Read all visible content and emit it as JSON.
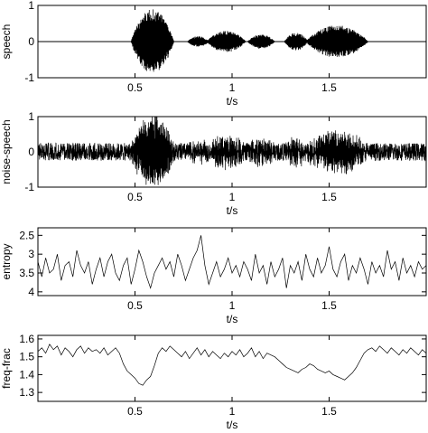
{
  "chart_data": [
    {
      "type": "line",
      "ylabel": "speech",
      "xlabel": "t/s",
      "xlim": [
        0,
        2
      ],
      "ylim": [
        -1,
        1
      ],
      "xticks": [
        0.5,
        1,
        1.5
      ],
      "xtick_labels": [
        "0.5",
        "1",
        "1.5"
      ],
      "yticks": [
        1,
        0,
        -1
      ],
      "ytick_labels": [
        "1",
        "0",
        "-1"
      ],
      "y_inverted": false,
      "signal": {
        "kind": "oscillation",
        "noise": 0.0,
        "segments": [
          {
            "start": 0.48,
            "end": 0.7,
            "amp": 0.9
          },
          {
            "start": 0.77,
            "end": 0.88,
            "amp": 0.15
          },
          {
            "start": 0.87,
            "end": 1.07,
            "amp": 0.3
          },
          {
            "start": 1.08,
            "end": 1.22,
            "amp": 0.2
          },
          {
            "start": 1.27,
            "end": 1.39,
            "amp": 0.25
          },
          {
            "start": 1.38,
            "end": 1.7,
            "amp": 0.45
          }
        ]
      }
    },
    {
      "type": "line",
      "ylabel": "noise-speech",
      "xlabel": "t/s",
      "xlim": [
        0,
        2
      ],
      "ylim": [
        -1,
        1
      ],
      "xticks": [
        0.5,
        1,
        1.5
      ],
      "xtick_labels": [
        "0.5",
        "1",
        "1.5"
      ],
      "yticks": [
        1,
        0,
        -1
      ],
      "ytick_labels": [
        "1",
        "0",
        "-1"
      ],
      "y_inverted": false,
      "signal": {
        "kind": "oscillation",
        "noise": 0.25,
        "segments": [
          {
            "start": 0.48,
            "end": 0.7,
            "amp": 0.9
          },
          {
            "start": 0.77,
            "end": 0.88,
            "amp": 0.15
          },
          {
            "start": 0.87,
            "end": 1.07,
            "amp": 0.3
          },
          {
            "start": 1.08,
            "end": 1.22,
            "amp": 0.2
          },
          {
            "start": 1.27,
            "end": 1.39,
            "amp": 0.25
          },
          {
            "start": 1.38,
            "end": 1.7,
            "amp": 0.45
          }
        ]
      }
    },
    {
      "type": "line",
      "ylabel": "entropy",
      "xlabel": "t/s",
      "xlim": [
        0,
        2
      ],
      "ylim": [
        2.3,
        4.1
      ],
      "xticks": [
        0.5,
        1,
        1.5
      ],
      "xtick_labels": [
        "0.5",
        "1",
        "1.5"
      ],
      "yticks": [
        2.5,
        3,
        3.5,
        4
      ],
      "ytick_labels": [
        "2.5",
        "3",
        "3.5",
        "4"
      ],
      "y_inverted": true,
      "x": [
        0.0,
        0.02,
        0.04,
        0.06,
        0.08,
        0.1,
        0.12,
        0.14,
        0.16,
        0.18,
        0.2,
        0.22,
        0.24,
        0.26,
        0.28,
        0.3,
        0.32,
        0.34,
        0.36,
        0.38,
        0.4,
        0.42,
        0.44,
        0.46,
        0.48,
        0.5,
        0.52,
        0.54,
        0.56,
        0.58,
        0.6,
        0.62,
        0.64,
        0.66,
        0.68,
        0.7,
        0.72,
        0.74,
        0.76,
        0.78,
        0.8,
        0.82,
        0.84,
        0.86,
        0.88,
        0.9,
        0.92,
        0.94,
        0.96,
        0.98,
        1.0,
        1.02,
        1.04,
        1.06,
        1.08,
        1.1,
        1.12,
        1.14,
        1.16,
        1.18,
        1.2,
        1.22,
        1.24,
        1.26,
        1.28,
        1.3,
        1.32,
        1.34,
        1.36,
        1.38,
        1.4,
        1.42,
        1.44,
        1.46,
        1.48,
        1.5,
        1.52,
        1.54,
        1.56,
        1.58,
        1.6,
        1.62,
        1.64,
        1.66,
        1.68,
        1.7,
        1.72,
        1.74,
        1.76,
        1.78,
        1.8,
        1.82,
        1.84,
        1.86,
        1.88,
        1.9,
        1.92,
        1.94,
        1.96,
        1.98,
        2.0
      ],
      "y": [
        3.2,
        3.6,
        3.1,
        3.5,
        3.4,
        3.0,
        3.7,
        3.3,
        3.2,
        3.6,
        2.9,
        3.3,
        3.5,
        3.2,
        3.8,
        3.4,
        3.1,
        3.6,
        3.2,
        3.0,
        3.5,
        3.7,
        3.3,
        3.1,
        3.8,
        3.4,
        2.9,
        3.2,
        3.6,
        3.9,
        3.5,
        3.3,
        3.1,
        3.4,
        3.2,
        3.6,
        3.0,
        3.3,
        3.7,
        3.4,
        3.1,
        2.9,
        2.5,
        3.3,
        3.8,
        3.5,
        3.2,
        3.6,
        3.4,
        3.1,
        3.5,
        3.3,
        3.6,
        3.2,
        3.4,
        3.7,
        3.0,
        3.5,
        3.3,
        3.8,
        3.2,
        3.6,
        3.4,
        3.1,
        3.9,
        3.3,
        3.5,
        3.2,
        3.7,
        3.0,
        3.4,
        3.6,
        3.1,
        3.5,
        3.3,
        2.8,
        3.4,
        3.6,
        3.2,
        3.0,
        3.7,
        3.3,
        3.5,
        3.1,
        3.4,
        3.8,
        3.2,
        3.5,
        3.3,
        3.6,
        2.9,
        3.4,
        3.2,
        3.7,
        3.1,
        3.5,
        3.3,
        3.6,
        3.2,
        3.4,
        3.3
      ]
    },
    {
      "type": "line",
      "ylabel": "freq-frac",
      "xlabel": "t/s",
      "xlim": [
        0,
        2
      ],
      "ylim": [
        1.25,
        1.62
      ],
      "xticks": [
        0.5,
        1,
        1.5
      ],
      "xtick_labels": [
        "0.5",
        "1",
        "1.5"
      ],
      "yticks": [
        1.6,
        1.5,
        1.4,
        1.3
      ],
      "ytick_labels": [
        "1.6",
        "1.5",
        "1.4",
        "1.3"
      ],
      "y_inverted": false,
      "x": [
        0.0,
        0.02,
        0.04,
        0.06,
        0.08,
        0.1,
        0.12,
        0.14,
        0.16,
        0.18,
        0.2,
        0.22,
        0.24,
        0.26,
        0.28,
        0.3,
        0.32,
        0.34,
        0.36,
        0.38,
        0.4,
        0.42,
        0.44,
        0.46,
        0.48,
        0.5,
        0.52,
        0.54,
        0.56,
        0.58,
        0.6,
        0.62,
        0.64,
        0.66,
        0.68,
        0.7,
        0.72,
        0.74,
        0.76,
        0.78,
        0.8,
        0.82,
        0.84,
        0.86,
        0.88,
        0.9,
        0.92,
        0.94,
        0.96,
        0.98,
        1.0,
        1.02,
        1.04,
        1.06,
        1.08,
        1.1,
        1.12,
        1.14,
        1.16,
        1.18,
        1.2,
        1.22,
        1.24,
        1.26,
        1.28,
        1.3,
        1.32,
        1.34,
        1.36,
        1.38,
        1.4,
        1.42,
        1.44,
        1.46,
        1.48,
        1.5,
        1.52,
        1.54,
        1.56,
        1.58,
        1.6,
        1.62,
        1.64,
        1.66,
        1.68,
        1.7,
        1.72,
        1.74,
        1.76,
        1.78,
        1.8,
        1.82,
        1.84,
        1.86,
        1.88,
        1.9,
        1.92,
        1.94,
        1.96,
        1.98,
        2.0
      ],
      "y": [
        1.53,
        1.55,
        1.52,
        1.57,
        1.54,
        1.56,
        1.51,
        1.55,
        1.53,
        1.5,
        1.54,
        1.56,
        1.52,
        1.55,
        1.53,
        1.54,
        1.52,
        1.55,
        1.51,
        1.53,
        1.55,
        1.52,
        1.46,
        1.42,
        1.4,
        1.38,
        1.35,
        1.34,
        1.37,
        1.39,
        1.45,
        1.52,
        1.55,
        1.53,
        1.56,
        1.54,
        1.52,
        1.5,
        1.53,
        1.49,
        1.52,
        1.55,
        1.51,
        1.54,
        1.5,
        1.53,
        1.51,
        1.49,
        1.52,
        1.5,
        1.53,
        1.51,
        1.54,
        1.5,
        1.52,
        1.55,
        1.5,
        1.53,
        1.49,
        1.52,
        1.51,
        1.5,
        1.48,
        1.46,
        1.44,
        1.43,
        1.42,
        1.41,
        1.43,
        1.44,
        1.46,
        1.45,
        1.43,
        1.42,
        1.41,
        1.42,
        1.4,
        1.39,
        1.38,
        1.37,
        1.39,
        1.41,
        1.44,
        1.48,
        1.52,
        1.54,
        1.55,
        1.53,
        1.56,
        1.54,
        1.52,
        1.55,
        1.53,
        1.51,
        1.54,
        1.52,
        1.55,
        1.53,
        1.51,
        1.54,
        1.52
      ]
    }
  ]
}
